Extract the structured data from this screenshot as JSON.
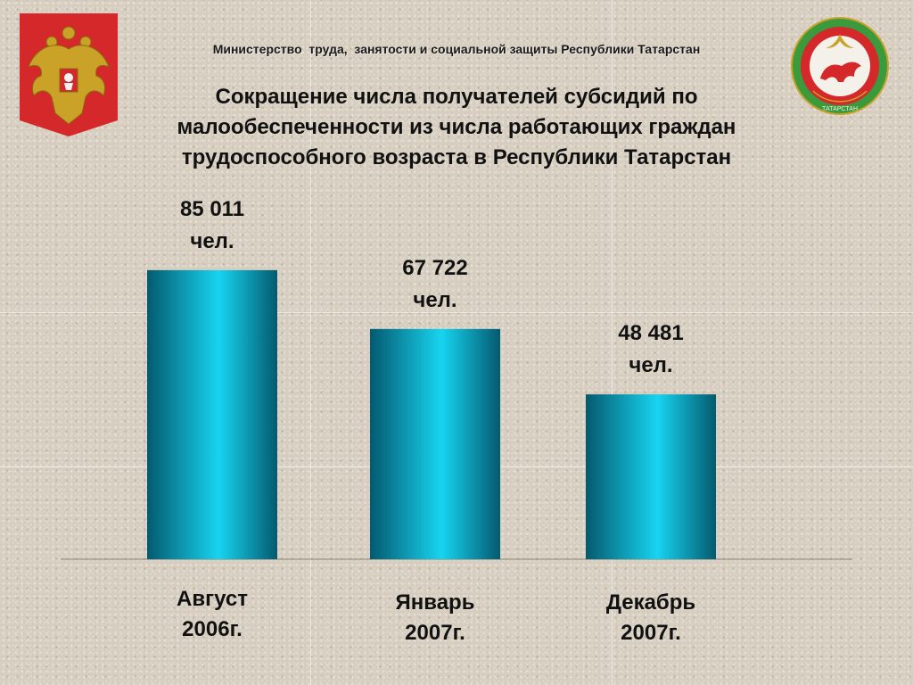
{
  "header": {
    "ministry": "Министерство  труда,  занятости и социальной защиты Республики Татарстан",
    "title_lines": [
      "Сокращение числа получателей субсидий по",
      "малообеспеченности из числа работающих граждан",
      "трудоспособного возраста в Республики Татарстан"
    ]
  },
  "emblems": {
    "left": "russian-coat-of-arms-icon",
    "right": "tatarstan-coat-of-arms-icon",
    "right_text": "ТАТАРСТАН"
  },
  "colors": {
    "bar_light": "#17d4f0",
    "bar_dark": "#045a70",
    "emblem_red": "#d4282a",
    "emblem_green": "#3b9a3b"
  },
  "chart_data": {
    "type": "bar",
    "title": "Сокращение числа получателей субсидий по малообеспеченности из числа работающих граждан трудоспособного возраста в Республики Татарстан",
    "categories": [
      [
        "Август",
        "2006г."
      ],
      [
        "Январь",
        "2007г."
      ],
      [
        "Декабрь",
        "2007г."
      ]
    ],
    "values": [
      85011,
      67722,
      48481
    ],
    "value_labels": [
      [
        "85 011",
        "чел."
      ],
      [
        "67 722",
        "чел."
      ],
      [
        "48 481",
        "чел."
      ]
    ],
    "ylim": [
      0,
      112000
    ],
    "grid": true,
    "legend": "none"
  }
}
